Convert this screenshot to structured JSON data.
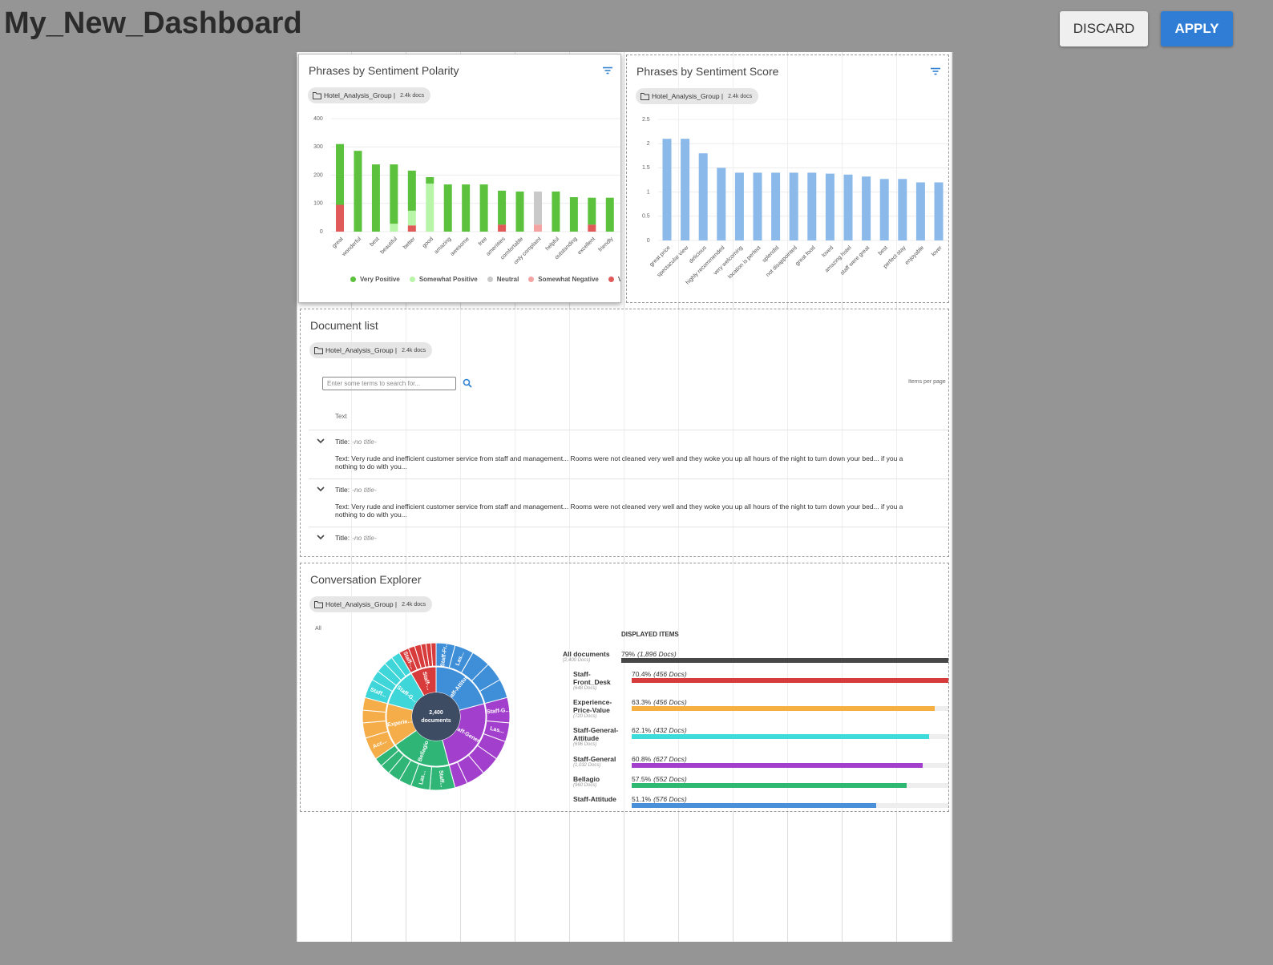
{
  "header": {
    "title": "My_New_Dashboard",
    "buttons": [
      "DISCARD",
      "APPLY"
    ]
  },
  "source": {
    "name": "Hotel_Analysis_Group |",
    "docs": "2.4k docs"
  },
  "chart_data": [
    {
      "type": "bar",
      "stacked": true,
      "title": "Phrases by Sentiment Polarity",
      "categories": [
        "great",
        "wonderful",
        "best",
        "beautiful",
        "better",
        "good",
        "amazing",
        "awesome",
        "free",
        "amenities",
        "comfortable",
        "only complaint",
        "helpful",
        "outstanding",
        "excellent",
        "friendly"
      ],
      "series": [
        {
          "name": "Very Negative",
          "color": "#e05a5a",
          "values": [
            95,
            0,
            0,
            0,
            22,
            0,
            0,
            0,
            0,
            25,
            0,
            0,
            0,
            0,
            25,
            0
          ]
        },
        {
          "name": "Somewhat Negative",
          "color": "#f4a3a3",
          "values": [
            0,
            0,
            0,
            0,
            0,
            0,
            0,
            0,
            0,
            0,
            0,
            25,
            0,
            0,
            0,
            0
          ]
        },
        {
          "name": "Neutral",
          "color": "#c9c9c9",
          "values": [
            0,
            0,
            0,
            0,
            0,
            0,
            0,
            0,
            0,
            0,
            0,
            117,
            0,
            0,
            0,
            0
          ]
        },
        {
          "name": "Somewhat Positive",
          "color": "#b9f5a8",
          "values": [
            0,
            0,
            0,
            28,
            52,
            170,
            0,
            0,
            0,
            0,
            0,
            0,
            0,
            0,
            0,
            0
          ]
        },
        {
          "name": "Very Positive",
          "color": "#5cc13d",
          "values": [
            215,
            286,
            238,
            210,
            142,
            23,
            167,
            167,
            167,
            120,
            142,
            0,
            142,
            122,
            95,
            120
          ]
        }
      ],
      "legend_order": [
        4,
        3,
        2,
        1,
        0
      ],
      "ylim": [
        0,
        400
      ],
      "yticks": [
        0,
        100,
        200,
        300,
        400
      ],
      "grid": true,
      "legend": "bottom"
    },
    {
      "type": "bar",
      "title": "Phrases by Sentiment Score",
      "categories": [
        "great price",
        "spectacular view",
        "delicious",
        "highly recommended",
        "very welcoming",
        "location is perfect",
        "splendid",
        "not disappointed",
        "great food",
        "loved",
        "amazing hotel",
        "staff were great",
        "best",
        "perfect stay",
        "enjoyable",
        "lover"
      ],
      "values": [
        2.1,
        2.1,
        1.8,
        1.5,
        1.4,
        1.4,
        1.4,
        1.4,
        1.4,
        1.38,
        1.36,
        1.32,
        1.27,
        1.27,
        1.2,
        1.2
      ],
      "color": "#8ab9ea",
      "ylim": [
        0,
        2.5
      ],
      "yticks": [
        0,
        0.5,
        1,
        1.5,
        2,
        2.5
      ],
      "grid": true
    },
    {
      "type": "sunburst",
      "filter_label": "All",
      "center_label": [
        "2,400",
        "documents"
      ],
      "segments": [
        {
          "label": "Staff-Attitude",
          "color": "#3f8ed8",
          "value": 75,
          "children": [
            15,
            15,
            15,
            15,
            15
          ],
          "child_labels": [
            "Staff-Fr...",
            "Las...",
            null,
            null,
            null
          ]
        },
        {
          "label": "Staff-General",
          "color": "#a23fcc",
          "value": 90,
          "children": [
            20,
            15,
            15,
            15,
            15,
            10
          ],
          "child_labels": [
            "Staff-G...",
            "Las...",
            null,
            null,
            null,
            null
          ]
        },
        {
          "label": "Bellagio",
          "color": "#2fb576",
          "value": 70,
          "children": [
            20,
            15,
            10,
            10,
            8,
            7
          ],
          "child_labels": [
            "Staff...",
            "Las...",
            null,
            null,
            null,
            null
          ]
        },
        {
          "label": "Experie...",
          "color": "#f5ad4a",
          "value": 50,
          "children": [
            18,
            12,
            10,
            10
          ],
          "child_labels": [
            "Acc...",
            null,
            null,
            null
          ]
        },
        {
          "label": "Staff-G...",
          "color": "#3fd6da",
          "value": 45,
          "children": [
            15,
            8,
            8,
            7,
            7
          ],
          "child_labels": [
            "Staff...",
            null,
            null,
            null,
            null
          ]
        },
        {
          "label": "Staff-...",
          "color": "#d83b3b",
          "value": 30,
          "children": [
            8,
            5,
            5,
            4,
            4,
            4
          ],
          "child_labels": [
            "Staff-...",
            null,
            null,
            null,
            null,
            null
          ]
        }
      ]
    }
  ],
  "document_list": {
    "title": "Document list",
    "search_placeholder": "Enter some terms to search for...",
    "items_per_page": "Items per page",
    "column": "Text",
    "title_label": "Title:",
    "rows": [
      {
        "title": "-no title-",
        "text": [
          "Text: Very rude and inefficient customer service from staff and management... Rooms were not cleaned very well and they woke you up all hours of the night to turn down your bed... if you a",
          "nothing to do with you..."
        ]
      },
      {
        "title": "-no title-",
        "text": [
          "Text: Very rude and inefficient customer service from staff and management... Rooms were not cleaned very well and they woke you up all hours of the night to turn down your bed... if you a",
          "nothing to do with you..."
        ]
      },
      {
        "title": "-no title-"
      }
    ]
  },
  "conversation_explorer": {
    "title": "Conversation Explorer",
    "items_heading": "DISPLAYED ITEMS",
    "items": [
      {
        "name": "All documents",
        "total": "(2,400 Docs)",
        "percent": 79,
        "percent_label": "79%",
        "docs": "(1,896 Docs)",
        "color": "#474747"
      },
      {
        "name": "Staff-Front_Desk",
        "total": "(648 Docs)",
        "percent": 70.4,
        "percent_label": "70.4%",
        "docs": "(456 Docs)",
        "color": "#d63c3c"
      },
      {
        "name": "Experience-Price-Value",
        "total": "(720 Docs)",
        "percent": 63.3,
        "percent_label": "63.3%",
        "docs": "(456 Docs)",
        "color": "#f5b041"
      },
      {
        "name": "Staff-General-Attitude",
        "total": "(696 Docs)",
        "percent": 62.1,
        "percent_label": "62.1%",
        "docs": "(432 Docs)",
        "color": "#3ddbd9"
      },
      {
        "name": "Staff-General",
        "total": "(1,032 Docs)",
        "percent": 60.8,
        "percent_label": "60.8%",
        "docs": "(627 Docs)",
        "color": "#a23fcc"
      },
      {
        "name": "Bellagio",
        "total": "(960 Docs)",
        "percent": 57.5,
        "percent_label": "57.5%",
        "docs": "(552 Docs)",
        "color": "#2fb872"
      },
      {
        "name": "Staff-Attitude",
        "percent": 51.1,
        "percent_label": "51.1%",
        "docs": "(576 Docs)",
        "color": "#4a90d9"
      }
    ]
  }
}
